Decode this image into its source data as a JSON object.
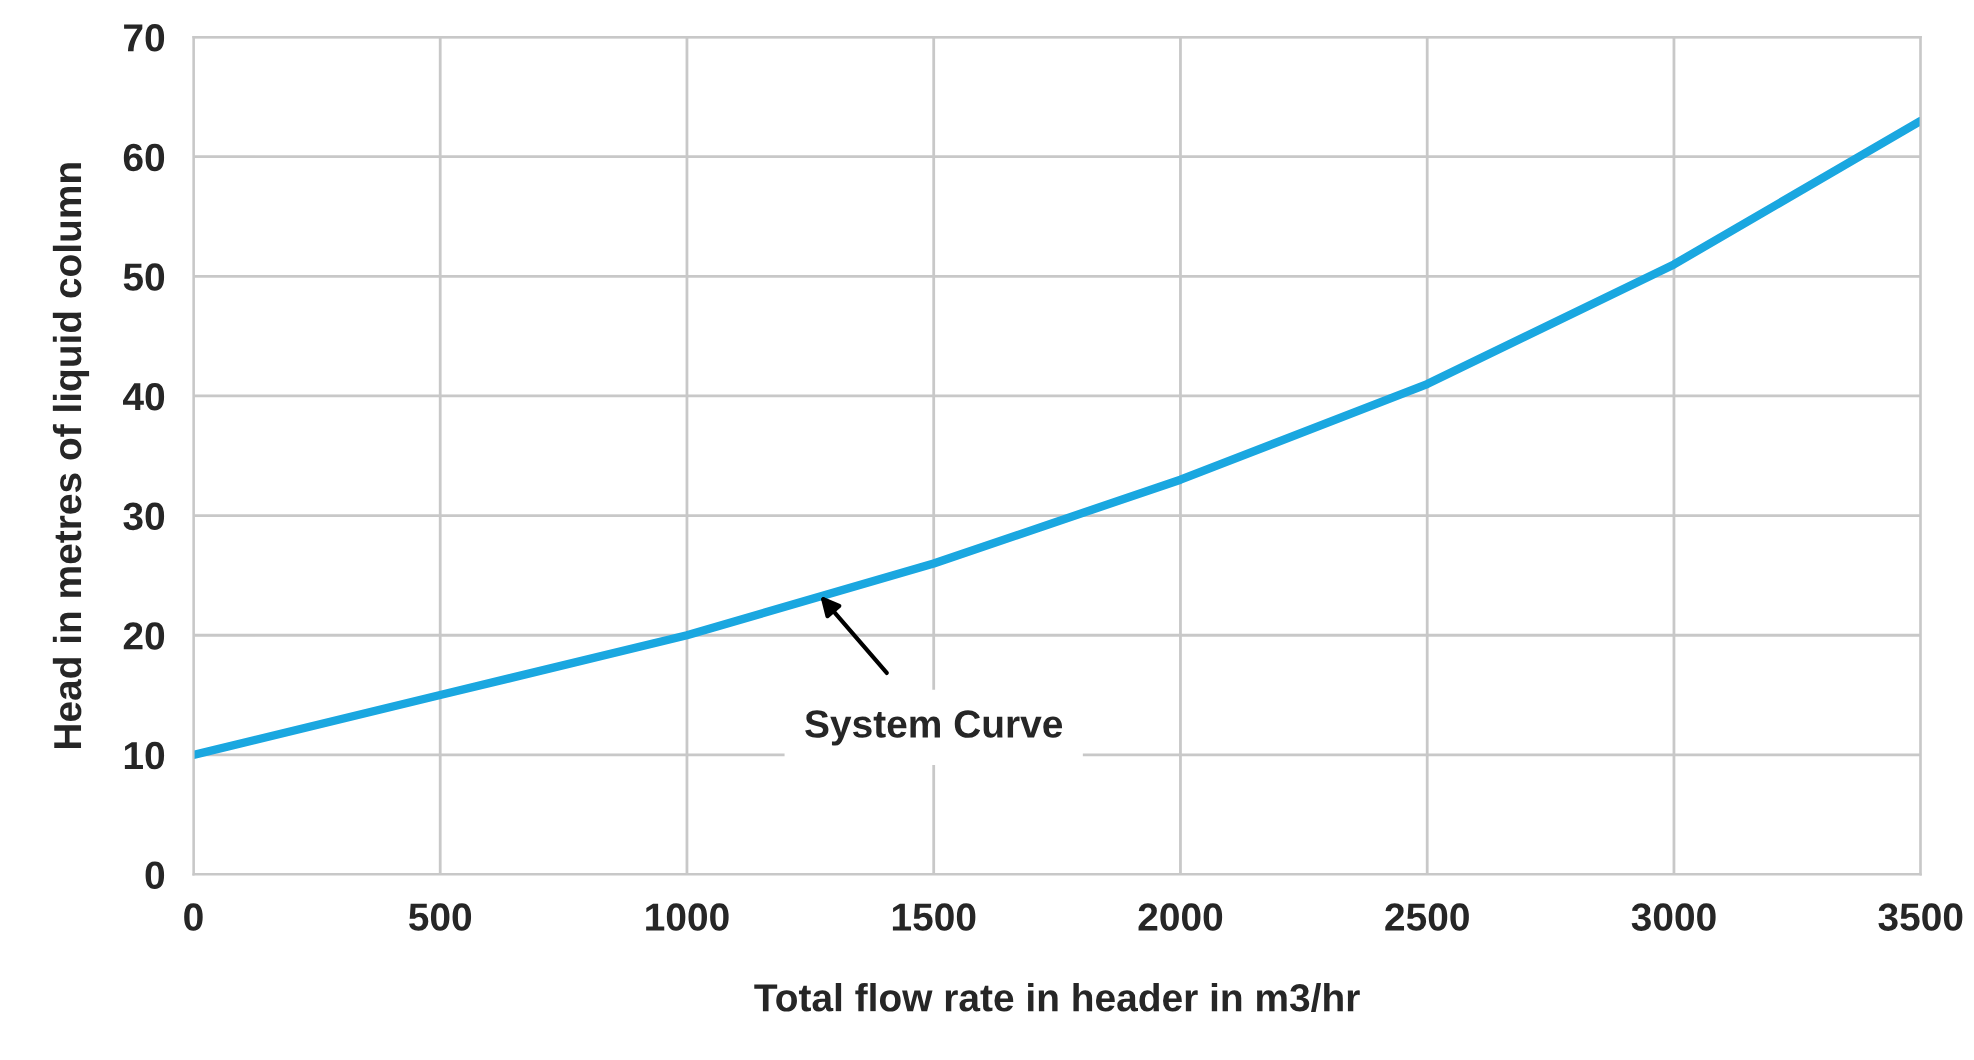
{
  "chart_data": {
    "type": "line",
    "xlabel": "Total flow rate in header in m3/hr",
    "ylabel": "Head in metres of liquid column",
    "x": [
      0,
      500,
      1000,
      1500,
      2000,
      2500,
      3000,
      3500
    ],
    "series": [
      {
        "color": "#1aa7e0",
        "values": [
          10,
          15,
          20,
          26,
          33,
          41,
          51,
          63
        ]
      }
    ],
    "xlim": [
      0,
      3500
    ],
    "xticks": [
      0,
      500,
      1000,
      1500,
      2000,
      2500,
      3000,
      3500
    ],
    "ylim": [
      0,
      70
    ],
    "yticks": [
      0,
      10,
      20,
      30,
      40,
      50,
      60,
      70
    ],
    "grid": true,
    "marker": "none",
    "line_style": "solid",
    "annotations": [
      {
        "text": "System Curve",
        "x": 1270,
        "y": 23.3
      }
    ]
  }
}
